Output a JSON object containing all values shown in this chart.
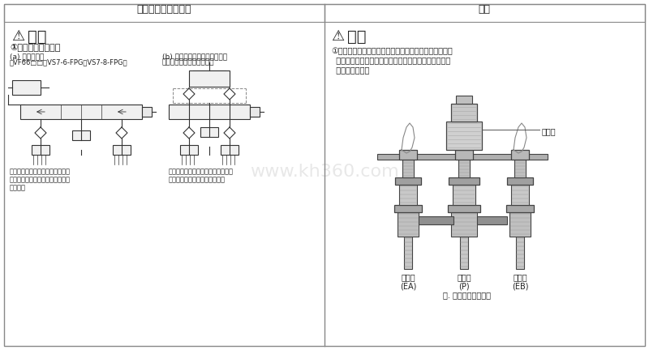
{
  "bg_color": "#ffffff",
  "border_color": "#888888",
  "text_color": "#222222",
  "left_header": "设计上的注意／选定",
  "right_header": "安装",
  "warning_text": "警告",
  "left_section": {
    "point1_title": "①不能使用的回路例",
    "sub_a_title": "(a) 中位止回阀",
    "sub_a_detail": "（VF66□□，VS7-6-FPG，VS7-8-FPG）",
    "sub_b_title": "(b) 在执行元件和电磁阀之间，",
    "sub_b_detail": "加入先导式单向阀的回路。",
    "desc_a": "由于排气节流阀的节流，残压的影\n响使中位止回阀内的单向阀不能正\n常动作。",
    "desc_b": "由于排气节流阀的节流，残压的影响\n使先导式单向阀不能正常动作。"
  },
  "right_section": {
    "point1_text": "①电磁阀的接管通口上安装管接头的场合，如图所示，有\n  可能和接头相互干涉导致无法安装。使用时应由样本上\n  尺寸加以确认。",
    "label_ea": "排气口\n(EA)",
    "label_p": "供给口\n(P)",
    "label_eb": "排气口\n(EB)",
    "label_solenoid": "电磁阀",
    "caption": "图. 和接头干涉的图例"
  },
  "watermark": "www.kh360.com"
}
